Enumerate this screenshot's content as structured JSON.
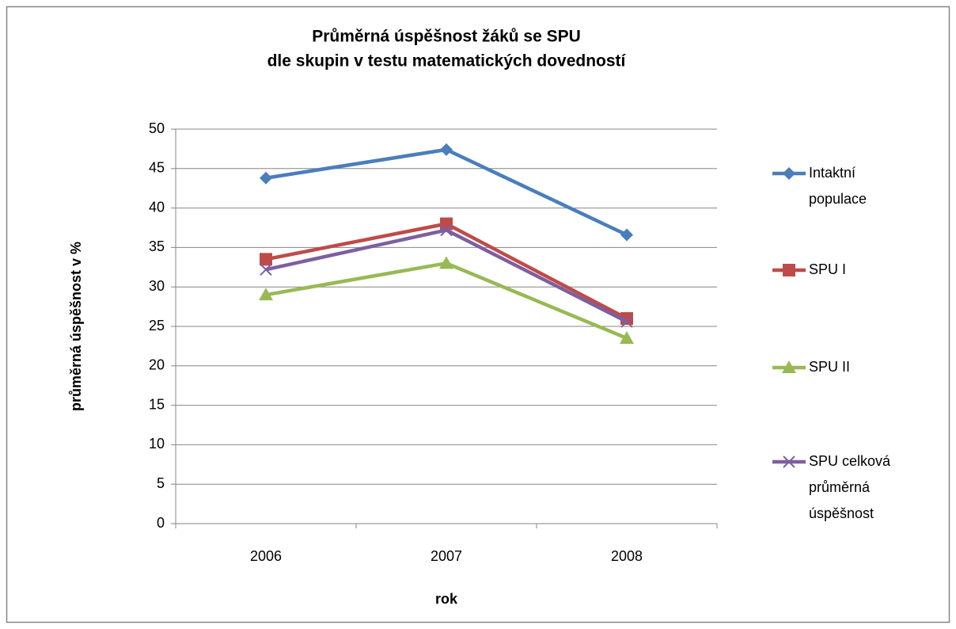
{
  "chart_data": {
    "type": "line",
    "title": [
      "Průměrná úspěšnost  žáků se SPU",
      "dle skupin v testu matematických dovedností"
    ],
    "x_label": "rok",
    "y_label": "průměrná úspěšnost v %",
    "categories": [
      "2006",
      "2007",
      "2008"
    ],
    "series": [
      {
        "name": "Intaktní populace",
        "color": "#4a7ebb",
        "marker": "diamond",
        "values": [
          43.8,
          47.4,
          36.6
        ]
      },
      {
        "name": "SPU I",
        "color": "#be4b48",
        "marker": "square",
        "values": [
          33.5,
          38,
          26
        ]
      },
      {
        "name": "SPU II",
        "color": "#98b954",
        "marker": "triangle",
        "values": [
          29,
          33,
          23.5
        ]
      },
      {
        "name": "SPU celková průměrná úspěšnost",
        "color": "#7d5fa0",
        "marker": "x",
        "values": [
          32.2,
          37.2,
          25.6
        ]
      }
    ],
    "ylim": [
      0,
      50
    ],
    "yticks": [
      0,
      5,
      10,
      15,
      20,
      25,
      30,
      35,
      40,
      45,
      50
    ],
    "grid": true,
    "legend": "right"
  }
}
